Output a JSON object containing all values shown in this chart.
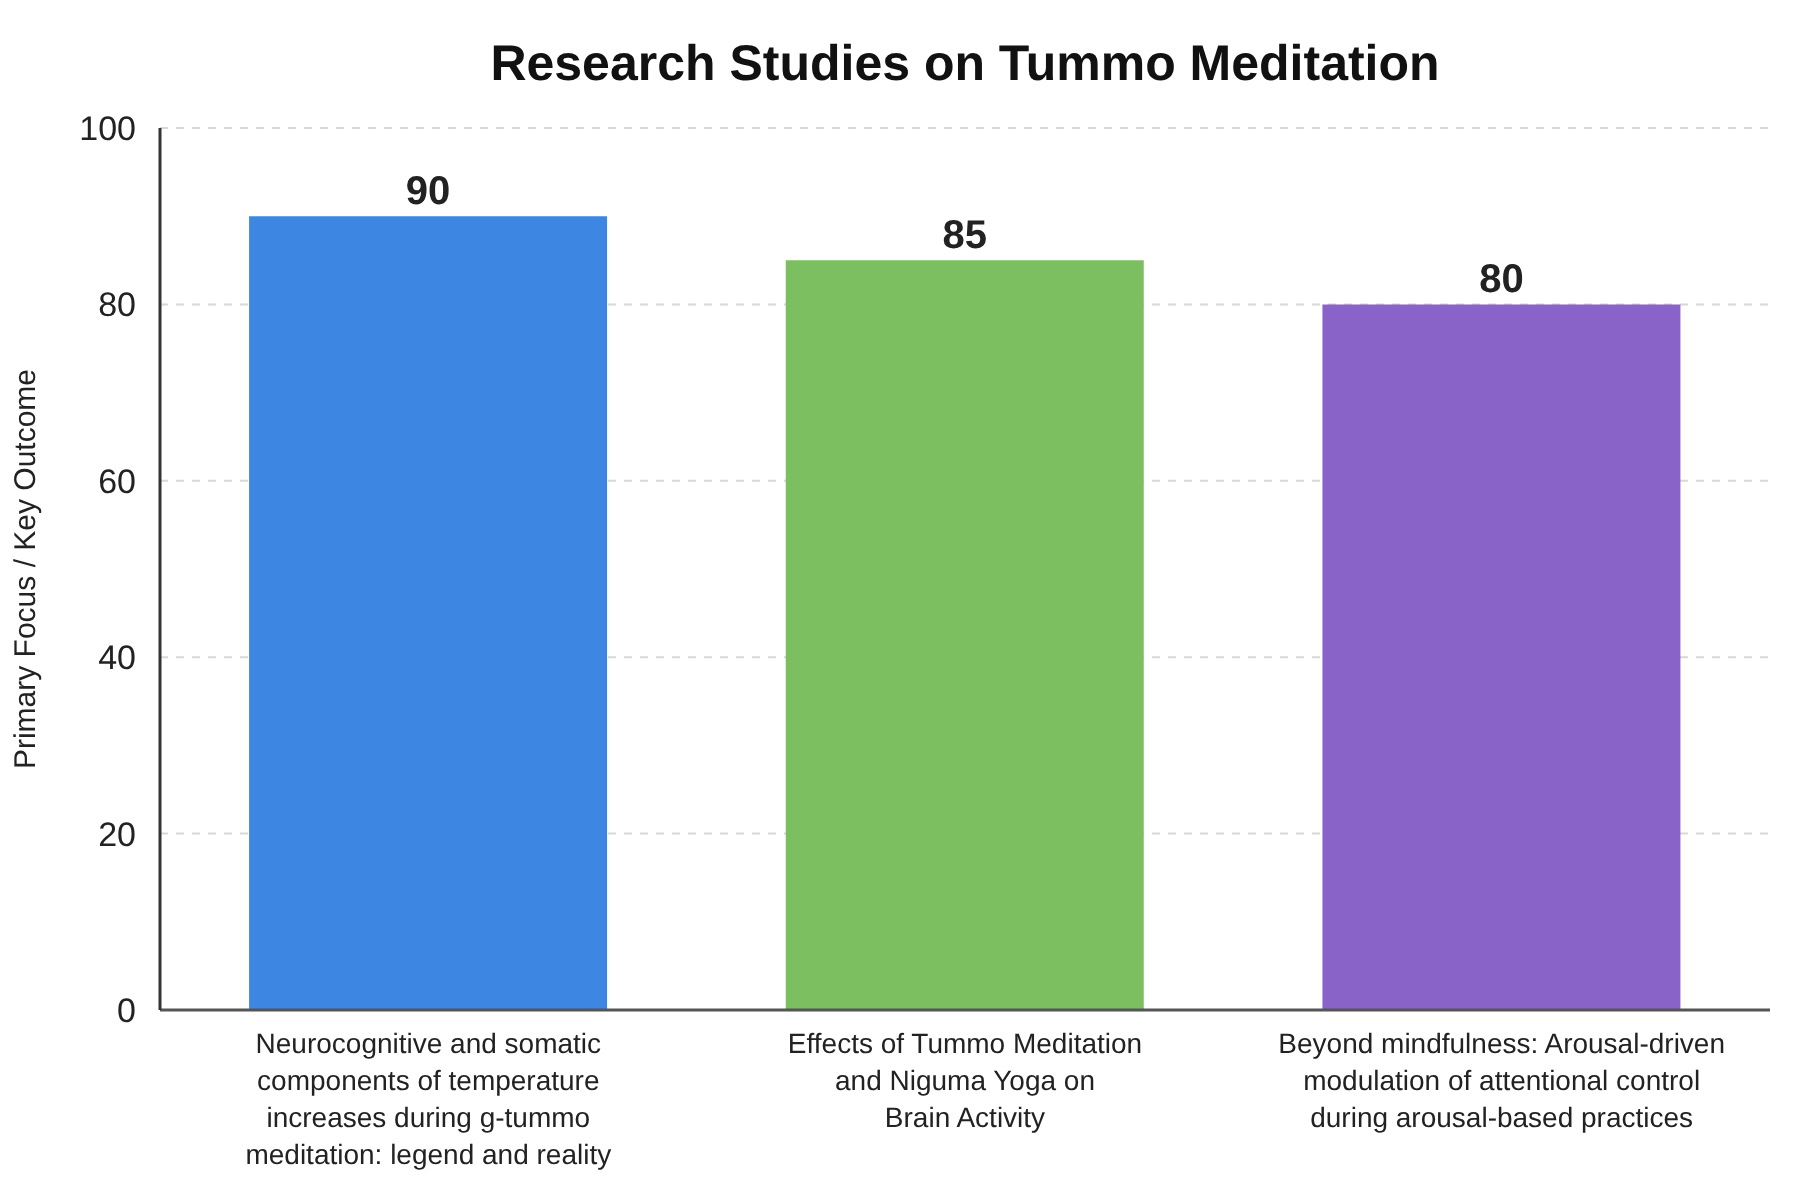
{
  "chart_data": {
    "type": "bar",
    "title": "Research Studies on Tummo Meditation",
    "ylabel": "Primary Focus / Key Outcome",
    "categories": [
      "Neurocognitive and somatic\ncomponents of temperature\nincreases during g-tummo\nmeditation: legend and reality",
      "Effects of Tummo Meditation\nand Niguma Yoga on\nBrain Activity",
      "Beyond mindfulness: Arousal-driven\nmodulation of attentional control\nduring arousal-based practices"
    ],
    "values": [
      90,
      85,
      80
    ],
    "colors": [
      "#3d87e2",
      "#7cbf60",
      "#8a63c8"
    ],
    "ylim": [
      0,
      100
    ],
    "yticks": [
      0,
      20,
      40,
      60,
      80,
      100
    ],
    "grid": "y",
    "data_labels": true
  }
}
